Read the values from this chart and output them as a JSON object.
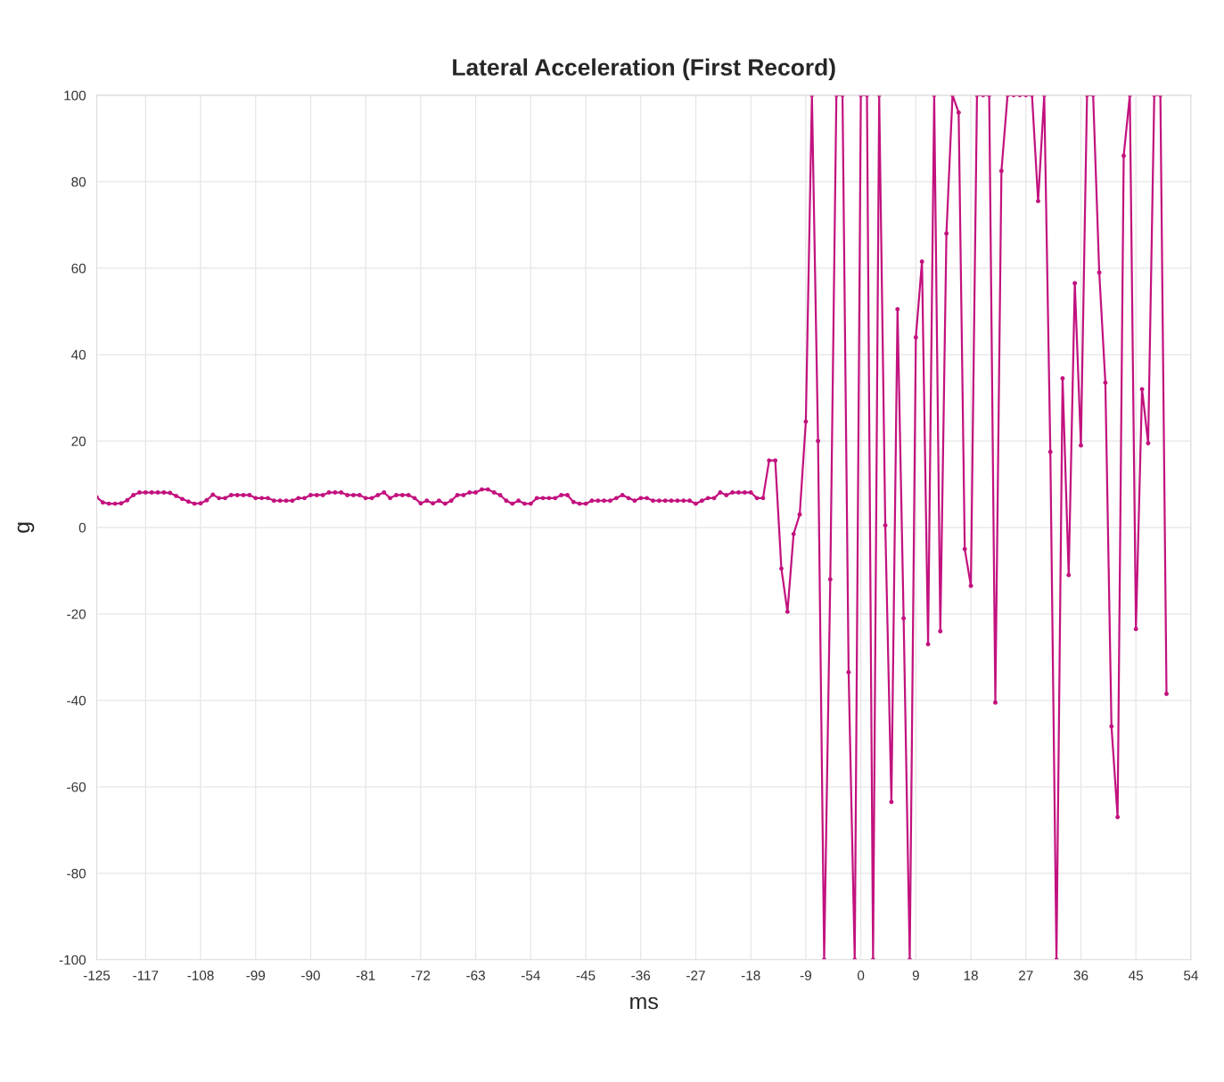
{
  "chart_data": {
    "type": "line",
    "title": "Lateral Acceleration (First Record)",
    "xlabel": "ms",
    "ylabel": "g",
    "x": [
      -125,
      -124,
      -123,
      -122,
      -121,
      -120,
      -119,
      -118,
      -117,
      -116,
      -115,
      -114,
      -113,
      -112,
      -111,
      -110,
      -109,
      -108,
      -107,
      -106,
      -105,
      -104,
      -103,
      -102,
      -101,
      -100,
      -99,
      -98,
      -97,
      -96,
      -95,
      -94,
      -93,
      -92,
      -91,
      -90,
      -89,
      -88,
      -87,
      -86,
      -85,
      -84,
      -83,
      -82,
      -81,
      -80,
      -79,
      -78,
      -77,
      -76,
      -75,
      -74,
      -73,
      -72,
      -71,
      -70,
      -69,
      -68,
      -67,
      -66,
      -65,
      -64,
      -63,
      -62,
      -61,
      -60,
      -59,
      -58,
      -57,
      -56,
      -55,
      -54,
      -53,
      -52,
      -51,
      -50,
      -49,
      -48,
      -47,
      -46,
      -45,
      -44,
      -43,
      -42,
      -41,
      -40,
      -39,
      -38,
      -37,
      -36,
      -35,
      -34,
      -33,
      -32,
      -31,
      -30,
      -29,
      -28,
      -27,
      -26,
      -25,
      -24,
      -23,
      -22,
      -21,
      -20,
      -19,
      -18,
      -17,
      -16,
      -15,
      -14,
      -13,
      -12,
      -11,
      -10,
      -9,
      -8,
      -7,
      -6,
      -5,
      -4,
      -3,
      -2,
      -1,
      0,
      1,
      2,
      3,
      4,
      5,
      6,
      7,
      8,
      9,
      10,
      11,
      12,
      13,
      14,
      15,
      16,
      17,
      18,
      19,
      20,
      21,
      22,
      23,
      24,
      25,
      26,
      27,
      28,
      29,
      30,
      31,
      32,
      33,
      34,
      35,
      36,
      37,
      38,
      39,
      40,
      41,
      42,
      43,
      44,
      45,
      46,
      47,
      48,
      49,
      50
    ],
    "series": [
      {
        "color": "#c2127e",
        "values": [
          7,
          5.8,
          5.5,
          5.5,
          5.6,
          6.3,
          7.5,
          8.1,
          8.1,
          8.1,
          8.1,
          8.1,
          8,
          7.3,
          6.6,
          6,
          5.5,
          5.6,
          6.3,
          7.6,
          6.8,
          6.8,
          7.5,
          7.5,
          7.5,
          7.5,
          6.8,
          6.8,
          6.8,
          6.2,
          6.2,
          6.2,
          6.2,
          6.8,
          6.8,
          7.5,
          7.5,
          7.5,
          8.1,
          8.1,
          8.1,
          7.5,
          7.5,
          7.5,
          6.8,
          6.8,
          7.5,
          8.1,
          6.8,
          7.5,
          7.5,
          7.5,
          6.8,
          5.6,
          6.2,
          5.6,
          6.2,
          5.5,
          6.2,
          7.5,
          7.5,
          8.1,
          8.1,
          8.8,
          8.8,
          8.1,
          7.5,
          6.2,
          5.5,
          6.2,
          5.5,
          5.5,
          6.8,
          6.8,
          6.8,
          6.8,
          7.5,
          7.5,
          5.9,
          5.5,
          5.5,
          6.2,
          6.2,
          6.2,
          6.2,
          6.8,
          7.5,
          6.8,
          6.2,
          6.8,
          6.8,
          6.2,
          6.2,
          6.2,
          6.2,
          6.2,
          6.2,
          6.2,
          5.5,
          6.2,
          6.8,
          6.8,
          8.1,
          7.5,
          8.1,
          8.1,
          8.1,
          8.1,
          6.8,
          6.8,
          15.5,
          15.5,
          -9.5,
          -19.5,
          -1.5,
          3,
          24.5,
          100,
          20,
          -100,
          -12,
          100,
          100,
          -33.5,
          -100,
          100,
          100,
          -100,
          100,
          0.5,
          -63.5,
          50.5,
          -21,
          -100,
          44,
          61.5,
          -27,
          100,
          -24,
          68,
          100,
          96,
          -5,
          -13.5,
          100,
          100,
          100,
          -40.5,
          82.5,
          100,
          100,
          100,
          100,
          100,
          75.5,
          100,
          17.5,
          -100,
          34.5,
          -11,
          56.5,
          19,
          100,
          100,
          59,
          33.5,
          -46,
          -67,
          86,
          100,
          -23.5,
          32,
          19.5,
          100,
          100,
          -38.5
        ]
      }
    ],
    "xlim": [
      -125,
      54
    ],
    "xticks": [
      -125,
      -117,
      -108,
      -99,
      -90,
      -81,
      -72,
      -63,
      -54,
      -45,
      -36,
      -27,
      -18,
      -9,
      0,
      9,
      18,
      27,
      36,
      45,
      54
    ],
    "ylim": [
      -100,
      100
    ],
    "yticks": [
      -100,
      -80,
      -60,
      -40,
      -20,
      0,
      20,
      40,
      60,
      80,
      100
    ],
    "grid": true,
    "marker": "circle",
    "line_style": "solid"
  }
}
